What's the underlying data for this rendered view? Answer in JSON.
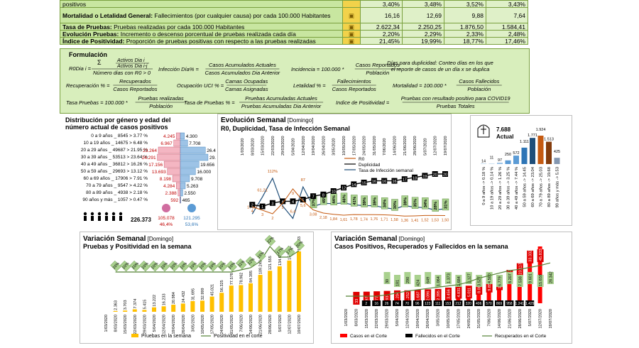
{
  "top_row": {
    "label": "positivos",
    "values": [
      "3,40%",
      "3,48%",
      "3,52%",
      "3,43%"
    ]
  },
  "indicators": [
    {
      "name": "Mortalidad o Letalidad General:",
      "desc": " Fallecimientos (por cualquier causa) por cada 100.000 Habitantes",
      "values": [
        "16,16",
        "12,69",
        "9,88",
        "7,64"
      ],
      "icon": "skull-icon"
    },
    {
      "name": "Tasa de Pruebas:",
      "desc": " Pruebas realizadas por cada 100.000 Habitantes",
      "values": [
        "2.622,34",
        "2.250,25",
        "1.876,50",
        "1.584,41"
      ],
      "icon": "test-tube-icon"
    },
    {
      "name": "Evolución Pruebas:",
      "desc": " Incremento o descenso porcentual de pruebas realizada cada día",
      "values": [
        "2,20%",
        "2,29%",
        "2,33%",
        "2,48%"
      ],
      "icon": "trend-icon"
    },
    {
      "name": "Índice de Positividad:",
      "desc": " Proporción de pruebas positivas con respecto a las pruebas realizadas",
      "values": [
        "21,45%",
        "19,99%",
        "18,77%",
        "17,46%"
      ],
      "icon": "percent-icon"
    }
  ],
  "formulas": {
    "title": "Formulación",
    "r0": "R0 = Σ Activos Dia i / Activos Dia i-j ÷ Número días con R0 > 0",
    "r0_lhs": "R0Dia i =",
    "r0_num": "Activos Dia i",
    "r0_den": "Activos Dia i-j",
    "r0_sum": "Σ",
    "r0_bottom": "Número dias con R0 > 0",
    "inf_lhs": "Infección Día% =",
    "inf_num": "Casos Acumulados Actuales",
    "inf_den": "Casos Acumulados Dia Anterior",
    "inc_lhs": "Incidencia = 100.000 *",
    "inc_num": "Casos Reportados",
    "inc_den": "Población",
    "dup_text1": "Días para duplicidad: Conteo días en los que",
    "dup_text2": "el reporte de casos de un día x se duplica",
    "rec_lhs": "Recuperación % =",
    "rec_num": "Recuperados",
    "rec_den": "Casos Reportados",
    "uci_lhs": "Ocupación UCI % =",
    "uci_num": "Camas Ocupadas",
    "uci_den": "Camas Asignadas",
    "let_lhs": "Letalidad % =",
    "let_num": "Fallecimientos",
    "let_den": "Casos Reportados",
    "mor_lhs": "Mortalidad = 100.000 *",
    "mor_num": "Casos Fallecidos",
    "mor_den": "Población",
    "tp_lhs": "Tasa Pruebas = 100.000 *",
    "tp_num": "Pruebas realizadas",
    "tp_den": "Población",
    "tpp_lhs": "Tasa de Pruebas % =",
    "tpp_num": "Pruebas Acumuladas Actuales",
    "tpp_den": "Pruebas Acumuladas Dia Anterior",
    "ip_lhs": "Indice de Positividad =",
    "ip_num": "Pruebas con resultado positivo para COVID19",
    "ip_den": "Pruebas Totales"
  },
  "pyramid": {
    "title1": "Distribución por género y edad del",
    "title2": "número actual de casos positivos",
    "rows": [
      {
        "label": "0 a 9 años _ 8545 > 3.77 %",
        "f": 4245,
        "m": 4300
      },
      {
        "label": "10 a 19 años _ 14675 > 6.48 %",
        "f": 6967,
        "m": 7708
      },
      {
        "label": "20 a 29 años _ 49687 > 21.95 %",
        "f": 23264,
        "m": 26423
      },
      {
        "label": "30 a 39 años _ 53513 > 23.64 %",
        "f": 24291,
        "m": 29222
      },
      {
        "label": "40 a 49 años _ 36812 > 16.26 %",
        "f": 17156,
        "m": 19656
      },
      {
        "label": "50 a 59 años _ 29693 > 13.12 %",
        "f": 13693,
        "m": 16000
      },
      {
        "label": "60 a 69 años _ 17906 > 7.91 %",
        "f": 8198,
        "m": 9708
      },
      {
        "label": "70 a 79 años _ 9547 > 4.22 %",
        "f": 4284,
        "m": 5263
      },
      {
        "label": "80 a 89 años _ 4938 > 2.18 %",
        "f": 2388,
        "m": 2550
      },
      {
        "label": "90 años y más _ 1057 > 0.47 %",
        "f": 592,
        "m": 465
      }
    ],
    "f_labels": [
      "4.245",
      "6.967",
      "23.264",
      "24.291",
      "17.156",
      "13.693",
      "8.198",
      "4.284",
      "2.388",
      "592"
    ],
    "m_labels": [
      "4.300",
      "7.708",
      "26.423",
      "29.222",
      "19.656",
      "16.000",
      "9.708",
      "5.263",
      "2.550",
      "465"
    ],
    "total": "226.373",
    "female_total": "105.078",
    "female_pct": "46,4%",
    "male_total": "121.295",
    "male_pct": "53,6%"
  },
  "evolution": {
    "title_bold": "Evolución Semanal",
    "title_rest": " [Domingo]",
    "subtitle": "R0, Duplicidad, Tasa de Infección Semanal",
    "dates": [
      "1/03/2020",
      "8/03/2020",
      "15/03/2020",
      "22/03/2020",
      "29/03/2020",
      "5/04/2020",
      "12/04/2020",
      "19/04/2020",
      "26/04/2020",
      "3/05/2020",
      "10/05/2020",
      "17/05/2020",
      "24/05/2020",
      "31/05/2020",
      "7/06/2020",
      "14/06/2020",
      "21/06/2020",
      "28/06/2020",
      "5/07/2020",
      "12/07/2020",
      "19/07/2020"
    ],
    "r0": [
      null,
      4,
      3,
      2,
      5,
      9,
      5.6,
      3.1,
      2.2,
      1.84,
      1.61,
      1.78,
      1.74,
      1.76,
      1.71,
      1.58,
      1.36,
      1.41,
      1.52,
      1.53,
      1.5
    ],
    "r0_labels": [
      "",
      "4",
      "3",
      "2",
      "5",
      "9",
      "5,6",
      "3,08",
      "2,18",
      "1,84",
      "1,61",
      "1,78",
      "1,74",
      "1,76",
      "1,71",
      "1,58",
      "1,36",
      "1,41",
      "1,52",
      "1,53",
      "1,50"
    ],
    "dup": [
      null,
      2,
      1,
      3,
      4,
      4,
      5,
      7,
      8,
      10,
      12,
      14,
      15,
      16,
      16,
      16,
      17,
      18,
      19,
      20,
      20
    ],
    "dup_labels": [
      "",
      "2",
      "1",
      "3",
      "4",
      "4",
      "5",
      "7",
      "8",
      "10",
      "12",
      "14",
      "15",
      "16",
      "16",
      "16",
      "17",
      "18",
      "19",
      "20",
      "20"
    ],
    "inf": [
      null,
      17.67,
      61.21,
      112,
      38,
      6.4,
      87,
      37,
      45,
      44,
      46,
      41,
      39,
      39,
      34,
      30,
      39,
      35,
      34,
      28,
      31
    ],
    "inf_labels": [
      "",
      "17,67",
      "61,21",
      "112%",
      "",
      "6,4",
      "87",
      "37%",
      "45%",
      "44%",
      "46%",
      "41%",
      "39%",
      "39%",
      "34%",
      "30%",
      "39%",
      "35%",
      "34%",
      "28%",
      "31%"
    ],
    "legend": [
      "R0",
      "Duplicidad",
      "Tasa de Infección semanal"
    ]
  },
  "deaths": {
    "value": "7.688",
    "label": "Actual",
    "categories": [
      "0 a 9 años -> 0.18 %",
      "10 a 19 años -> 0.14 %",
      "20 a 29 años -> 1.26 %",
      "30 a 39 años -> 3.25 %",
      "40 a 49 años -> 7.44 %",
      "50 a 59 años -> 14.45",
      "60 a 69 años -> 23.04",
      "70 a 79 años -> 25.03",
      "80 a 89 años -> 19.68",
      "90 años y más -> 5.53"
    ],
    "values": [
      14,
      11,
      97,
      250,
      572,
      1111,
      1771,
      1924,
      1513,
      425
    ],
    "labels": [
      "14",
      "11",
      "97",
      "250",
      "572",
      "1.111",
      "1.771",
      "1.924",
      "1.513",
      "425"
    ],
    "colors": [
      "#9dc3e6",
      "#9dc3e6",
      "#9dc3e6",
      "#5b9bd5",
      "#5b9bd5",
      "#2e75b6",
      "#1f4e79",
      "#c55a11",
      "#843c0c",
      "#8497b0"
    ]
  },
  "tests": {
    "title_bold": "Variación Semanal",
    "title_rest": " [Domingo]",
    "subtitle": "Pruebas y Positividad en la semana",
    "dates": [
      "1/03/2020",
      "8/03/2020",
      "15/03/2020",
      "22/03/2020",
      "29/03/2020",
      "5/04/2020",
      "12/04/2020",
      "19/04/2020",
      "26/04/2020",
      "3/05/2020",
      "10/05/2020",
      "17/05/2020",
      "24/05/2020",
      "31/05/2020",
      "7/06/2020",
      "14/06/2020",
      "21/06/2020",
      "28/06/2020",
      "5/07/2020",
      "12/07/2020",
      "19/07/2020"
    ],
    "tests": [
      0,
      2363,
      3703,
      7374,
      5415,
      13222,
      16233,
      20984,
      24432,
      31695,
      32999,
      45021,
      56325,
      77578,
      78962,
      84395,
      109249,
      121555,
      134603,
      151822,
      178833
    ],
    "test_labels": [
      "",
      "2.363",
      "3.703",
      "7.374",
      "5.415",
      "13.222",
      "16.233",
      "20.984",
      "24.432",
      "31.695",
      "32.999",
      "45.021",
      "56.325",
      "77.578",
      "78.962",
      "84.395",
      "109.249",
      "121.555",
      "134.603",
      "151.822",
      "178.833"
    ],
    "positivity": [
      null,
      10,
      10,
      10,
      10,
      10,
      10,
      10,
      10,
      10,
      10,
      10,
      10,
      10,
      11,
      12,
      15,
      22,
      17,
      17,
      20
    ],
    "pos_labels": [
      "",
      "10%",
      "10%",
      "10%",
      "10%",
      "10%",
      "10%",
      "10%",
      "10%",
      "10%",
      "10%",
      "10%",
      "10%",
      "10%",
      "11%",
      "12%",
      "15%",
      "22%",
      "17%",
      "17%",
      "20%"
    ],
    "legend": [
      "Pruebas en la semana",
      "Positividad en el corte"
    ]
  },
  "cases": {
    "title_bold": "Variación Semanal",
    "title_rest": " [Domingo]",
    "subtitle": "Casos Positivos, Recuperados y Fallecidos en la semana",
    "dates": [
      "1/03/2020",
      "8/03/2020",
      "15/03/2020",
      "22/03/2020",
      "29/03/2020",
      "5/04/2020",
      "12/04/2020",
      "19/04/2020",
      "26/04/2020",
      "3/05/2020",
      "10/05/2020",
      "17/05/2020",
      "24/05/2020",
      "31/05/2020",
      "7/06/2020",
      "14/06/2020",
      "21/06/2020",
      "28/06/2020",
      "5/07/2020",
      "12/07/2020",
      "19/07/2020"
    ],
    "positive": [
      0,
      33,
      197,
      477,
      793,
      1204,
      1252,
      1687,
      2096,
      2395,
      3456,
      4831,
      5011,
      8009,
      9853,
      11709,
      17713,
      23117,
      33332,
      45833,
      0
    ],
    "positive_labels": [
      "",
      "33",
      "197",
      "477",
      "793",
      "1.204",
      "1.252",
      "1.687",
      "2.096",
      "2.395",
      "3.456",
      "4.831",
      "5.011",
      "8.009",
      "9.853",
      "11.709",
      "17.713",
      "23.117",
      "33.332",
      "45.833",
      ""
    ],
    "recovered_labels": [
      "",
      "",
      "",
      "",
      "30",
      "181",
      "290",
      "424",
      "649",
      "1.064",
      "1.373",
      "1.684",
      "2.127",
      "3.527",
      "4.500",
      "6.779",
      "8.207",
      "7.538",
      "9.601",
      "15.659",
      "28.342"
    ],
    "deaths_labels": [
      "",
      "",
      "2",
      "16",
      "26",
      "74",
      "70",
      "96",
      "123",
      "111",
      "153",
      "212",
      "320",
      "406",
      "570",
      "869",
      "958",
      "1.241",
      "1.429",
      "",
      ""
    ],
    "recovered_line": [
      0,
      0,
      0,
      0,
      2,
      5,
      8,
      10,
      12,
      14,
      16,
      18,
      22,
      28,
      32,
      36,
      40,
      42,
      45,
      48,
      52
    ],
    "legend": [
      "Casos en el  Corte",
      "Fallecidos en el Corte",
      "Recuperados en el Corte"
    ]
  }
}
